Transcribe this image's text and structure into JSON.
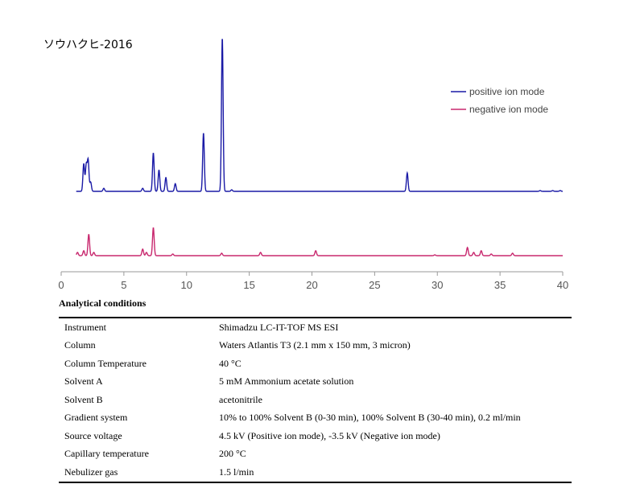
{
  "title": "ソウハクヒ-2016",
  "chart_data": {
    "type": "line",
    "xlim": [
      0,
      40
    ],
    "x_ticks": [
      0,
      5,
      10,
      15,
      20,
      25,
      30,
      35,
      40
    ],
    "legend_position": "top-right",
    "series": [
      {
        "name": "positive ion mode",
        "color": "#1a1aa6",
        "baseline": 0,
        "peaks": [
          {
            "x": 1.8,
            "h": 0.18
          },
          {
            "x": 2.0,
            "h": 0.17
          },
          {
            "x": 2.15,
            "h": 0.2
          },
          {
            "x": 2.35,
            "h": 0.06
          },
          {
            "x": 3.4,
            "h": 0.02
          },
          {
            "x": 6.5,
            "h": 0.02
          },
          {
            "x": 7.35,
            "h": 0.25
          },
          {
            "x": 7.8,
            "h": 0.14
          },
          {
            "x": 8.35,
            "h": 0.09
          },
          {
            "x": 9.1,
            "h": 0.05
          },
          {
            "x": 11.35,
            "h": 0.38
          },
          {
            "x": 12.85,
            "h": 1.0
          },
          {
            "x": 13.6,
            "h": 0.01
          },
          {
            "x": 27.6,
            "h": 0.12
          },
          {
            "x": 38.2,
            "h": 0.005
          },
          {
            "x": 39.2,
            "h": 0.005
          },
          {
            "x": 39.8,
            "h": 0.005
          }
        ]
      },
      {
        "name": "negative ion mode",
        "color": "#c8286e",
        "baseline": 0,
        "peaks": [
          {
            "x": 1.3,
            "h": 0.02
          },
          {
            "x": 1.8,
            "h": 0.03
          },
          {
            "x": 2.2,
            "h": 0.13
          },
          {
            "x": 2.6,
            "h": 0.02
          },
          {
            "x": 6.5,
            "h": 0.04
          },
          {
            "x": 6.8,
            "h": 0.02
          },
          {
            "x": 7.35,
            "h": 0.17
          },
          {
            "x": 8.9,
            "h": 0.01
          },
          {
            "x": 12.8,
            "h": 0.015
          },
          {
            "x": 15.9,
            "h": 0.02
          },
          {
            "x": 20.3,
            "h": 0.03
          },
          {
            "x": 29.8,
            "h": 0.005
          },
          {
            "x": 32.4,
            "h": 0.05
          },
          {
            "x": 32.9,
            "h": 0.02
          },
          {
            "x": 33.5,
            "h": 0.03
          },
          {
            "x": 34.3,
            "h": 0.01
          },
          {
            "x": 36.0,
            "h": 0.015
          }
        ]
      }
    ]
  },
  "conditions": {
    "heading": "Analytical conditions",
    "rows": [
      {
        "label": "Instrument",
        "value": "Shimadzu LC-IT-TOF MS ESI"
      },
      {
        "label": "Column",
        "value": "Waters Atlantis T3 (2.1 mm x 150 mm, 3 micron)"
      },
      {
        "label": "Column Temperature",
        "value": "40 °C"
      },
      {
        "label": "Solvent A",
        "value": "5 mM Ammonium acetate solution"
      },
      {
        "label": "Solvent B",
        "value": "acetonitrile"
      },
      {
        "label": "Gradient system",
        "value": "10% to 100% Solvent B (0-30 min), 100% Solvent B (30-40 min), 0.2 ml/min"
      },
      {
        "label": "Source voltage",
        "value": "4.5 kV (Positive ion mode), -3.5 kV (Negative ion mode)"
      },
      {
        "label": "Capillary temperature",
        "value": "200 °C"
      },
      {
        "label": "Nebulizer gas",
        "value": "1.5 l/min"
      }
    ]
  }
}
